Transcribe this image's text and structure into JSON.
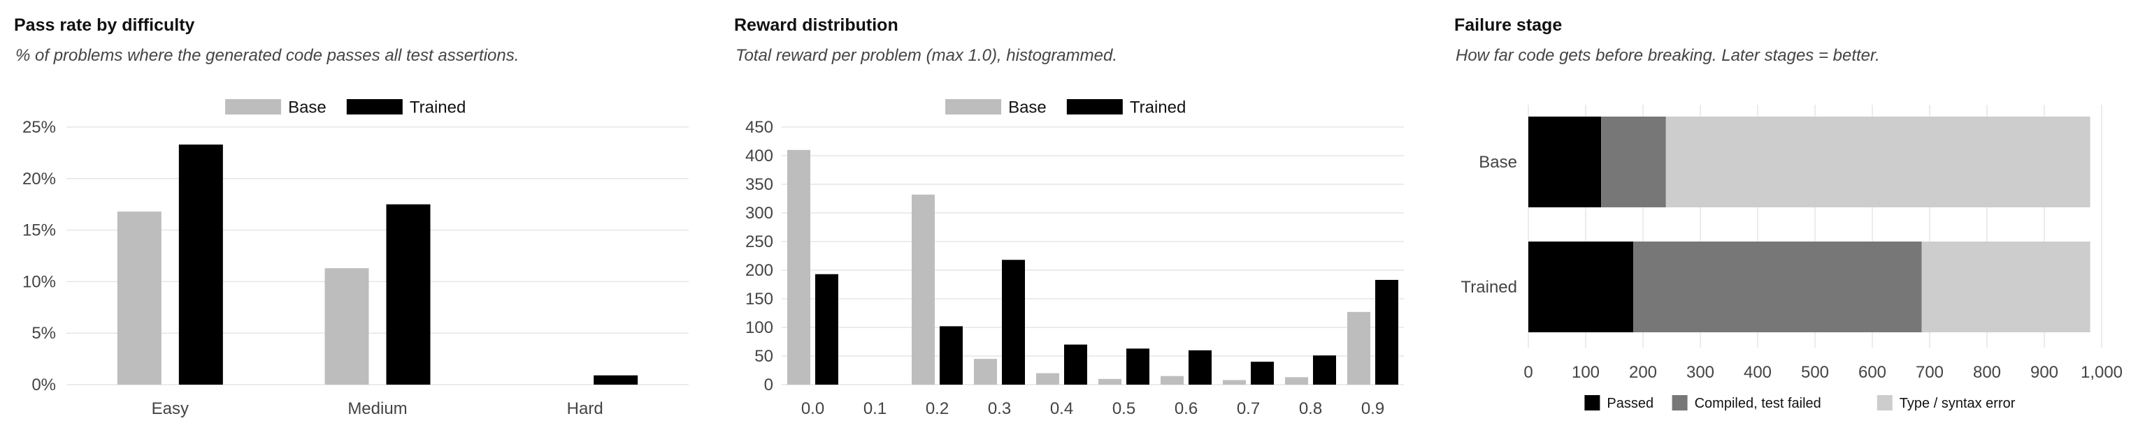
{
  "charts": [
    {
      "title": "Pass rate by difficulty",
      "subtitle": "% of problems where the generated code passes all test assertions.",
      "chart_data": {
        "type": "bar",
        "categories": [
          "Easy",
          "Medium",
          "Hard"
        ],
        "series": [
          {
            "name": "Base",
            "values": [
              16.8,
              11.3,
              0.0
            ]
          },
          {
            "name": "Trained",
            "values": [
              23.3,
              17.5,
              0.9
            ]
          }
        ],
        "ylim": [
          0,
          25
        ],
        "yticks": [
          0,
          5,
          10,
          15,
          20,
          25
        ],
        "ytick_labels": [
          "0%",
          "5%",
          "10%",
          "15%",
          "20%",
          "25%"
        ],
        "legend": "top-center",
        "grid": "horizontal"
      }
    },
    {
      "title": "Reward distribution",
      "subtitle": "Total reward per problem (max 1.0), histogrammed.",
      "chart_data": {
        "type": "bar",
        "categories": [
          "0.0",
          "0.1",
          "0.2",
          "0.3",
          "0.4",
          "0.5",
          "0.6",
          "0.7",
          "0.8",
          "0.9"
        ],
        "series": [
          {
            "name": "Base",
            "values": [
              410,
              0,
              332,
              45,
              20,
              10,
              15,
              8,
              13,
              127
            ]
          },
          {
            "name": "Trained",
            "values": [
              193,
              0,
              102,
              218,
              70,
              63,
              60,
              40,
              51,
              183
            ]
          }
        ],
        "ylim": [
          0,
          450
        ],
        "yticks": [
          0,
          50,
          100,
          150,
          200,
          250,
          300,
          350,
          400,
          450
        ],
        "ytick_labels": [
          "0",
          "50",
          "100",
          "150",
          "200",
          "250",
          "300",
          "350",
          "400",
          "450"
        ],
        "legend": "top-center",
        "grid": "horizontal"
      }
    },
    {
      "title": "Failure stage",
      "subtitle": "How far code gets before breaking. Later stages = better.",
      "chart_data": {
        "type": "bar",
        "orientation": "horizontal",
        "stacked": true,
        "categories": [
          "Base",
          "Trained"
        ],
        "series": [
          {
            "name": "Passed",
            "values": [
              127,
              183
            ]
          },
          {
            "name": "Compiled, test failed",
            "values": [
              113,
              503
            ]
          },
          {
            "name": "Type / syntax error",
            "values": [
              740,
              294
            ]
          }
        ],
        "xlim": [
          0,
          1000
        ],
        "xticks": [
          0,
          100,
          200,
          300,
          400,
          500,
          600,
          700,
          800,
          900,
          1000
        ],
        "xtick_labels": [
          "0",
          "100",
          "200",
          "300",
          "400",
          "500",
          "600",
          "700",
          "800",
          "900",
          "1,000"
        ],
        "legend": "bottom-center",
        "grid": "vertical"
      }
    }
  ],
  "colors": {
    "base": "#bdbdbd",
    "trained": "#000000",
    "passed": "#000000",
    "compiled_failed": "#777777",
    "syntax_error": "#cdcdcd",
    "grid": "#e6e6e6",
    "tick_text": "#444444"
  }
}
